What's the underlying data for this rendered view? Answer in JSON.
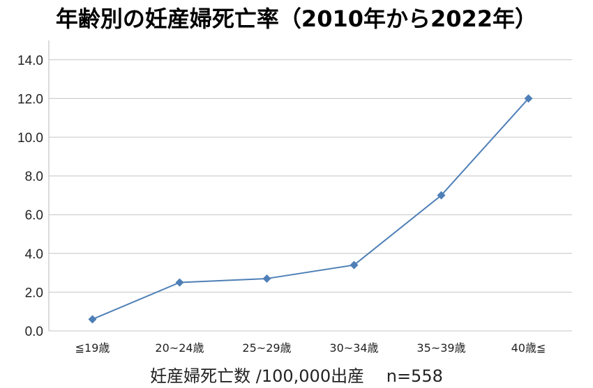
{
  "chart_data": {
    "type": "line",
    "title": "年齢別の妊産婦死亡率（2010年から2022年）",
    "xlabel": "妊産婦死亡数 /100,000出産　 n=558",
    "ylabel": "",
    "categories": [
      "≦19歳",
      "20~24歳",
      "25~29歳",
      "30~34歳",
      "35~39歳",
      "40歳≦"
    ],
    "series": [
      {
        "values": [
          0.6,
          2.5,
          2.7,
          3.4,
          7.0,
          12.0
        ]
      }
    ],
    "ylim": [
      0,
      15
    ],
    "yticks": [
      "0.0",
      "2.0",
      "4.0",
      "6.0",
      "8.0",
      "10.0",
      "12.0",
      "14.0"
    ],
    "grid": true,
    "legend": "none",
    "colors": {
      "series": "#4e7fb6",
      "grid": "#c4c4c4"
    }
  }
}
